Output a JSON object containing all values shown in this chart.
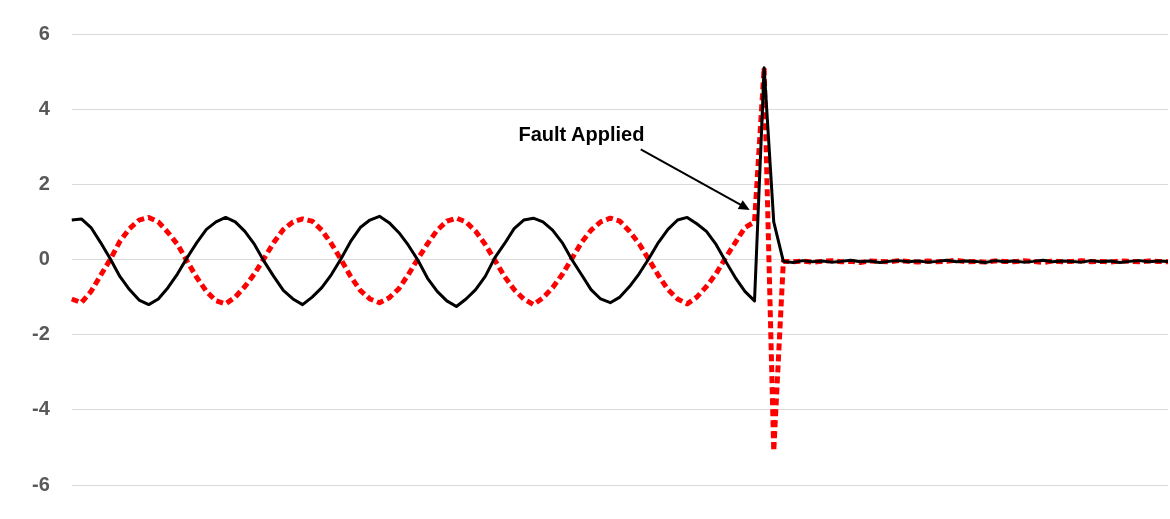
{
  "chart_data": {
    "type": "line",
    "categories": [
      null,
      null,
      null,
      null,
      null,
      null,
      null,
      null,
      null,
      null,
      null,
      null,
      null,
      null,
      null,
      null,
      null,
      null,
      null,
      null,
      null,
      null,
      null,
      null,
      null,
      null,
      null,
      null,
      null,
      null,
      null,
      null,
      null,
      null,
      null,
      null,
      null,
      null,
      null,
      null,
      null,
      null,
      null,
      null,
      null,
      null,
      null,
      null,
      null,
      null,
      null,
      null,
      null,
      null,
      null,
      null,
      null,
      null,
      null,
      null,
      null,
      null,
      null,
      null,
      null,
      null,
      null,
      null,
      null,
      null,
      null,
      null,
      null,
      null,
      null,
      null,
      null,
      null,
      null,
      null,
      null,
      null,
      null,
      null,
      null,
      null,
      null,
      null,
      null,
      null,
      null,
      null,
      null,
      null,
      null,
      null,
      null,
      null,
      null,
      null,
      null,
      null,
      null,
      null,
      null,
      null,
      null,
      null,
      null,
      null,
      null,
      null,
      null,
      null,
      null
    ],
    "series": [
      {
        "color": "#ff0000",
        "line_style": "dashed",
        "values": [
          -1.05,
          -1.15,
          -0.85,
          -0.42,
          0.0,
          0.48,
          0.82,
          1.05,
          1.12,
          1.0,
          0.72,
          0.4,
          -0.05,
          -0.48,
          -0.85,
          -1.1,
          -1.18,
          -1.0,
          -0.72,
          -0.38,
          0.03,
          0.45,
          0.8,
          1.0,
          1.08,
          1.02,
          0.78,
          0.42,
          0.0,
          -0.45,
          -0.82,
          -1.05,
          -1.15,
          -1.02,
          -0.78,
          -0.4,
          0.02,
          0.42,
          0.78,
          1.02,
          1.1,
          1.0,
          0.75,
          0.4,
          -0.02,
          -0.45,
          -0.8,
          -1.05,
          -1.2,
          -1.02,
          -0.75,
          -0.4,
          0.02,
          0.45,
          0.78,
          1.0,
          1.1,
          1.02,
          0.75,
          0.42,
          0.0,
          -0.42,
          -0.8,
          -1.05,
          -1.18,
          -1.0,
          -0.72,
          -0.38,
          0.05,
          0.45,
          0.85,
          1.0,
          5.1,
          -5.1,
          -0.05,
          -0.06,
          -0.04,
          -0.07,
          -0.05,
          -0.03,
          -0.06,
          -0.05,
          -0.08,
          -0.04,
          -0.05,
          -0.06,
          -0.03,
          -0.05,
          -0.07,
          -0.04,
          -0.06,
          -0.05,
          -0.02,
          -0.06,
          -0.05,
          -0.07,
          -0.04,
          -0.05,
          -0.06,
          -0.03,
          -0.05,
          -0.08,
          -0.04,
          -0.06,
          -0.05,
          -0.03,
          -0.06,
          -0.05,
          -0.07,
          -0.04,
          -0.05,
          -0.06,
          -0.04,
          -0.05,
          -0.06
        ]
      },
      {
        "color": "#000000",
        "line_style": "solid",
        "values": [
          1.05,
          1.08,
          0.85,
          0.45,
          0.02,
          -0.45,
          -0.8,
          -1.08,
          -1.2,
          -1.05,
          -0.75,
          -0.38,
          0.05,
          0.45,
          0.8,
          1.0,
          1.12,
          1.0,
          0.75,
          0.4,
          -0.05,
          -0.45,
          -0.82,
          -1.05,
          -1.2,
          -1.0,
          -0.75,
          -0.4,
          0.02,
          0.48,
          0.85,
          1.05,
          1.15,
          0.98,
          0.72,
          0.38,
          -0.02,
          -0.5,
          -0.85,
          -1.1,
          -1.25,
          -1.05,
          -0.8,
          -0.45,
          0.05,
          0.42,
          0.82,
          1.05,
          1.1,
          1.0,
          0.78,
          0.45,
          0.0,
          -0.4,
          -0.8,
          -1.05,
          -1.15,
          -1.0,
          -0.72,
          -0.38,
          0.02,
          0.45,
          0.8,
          1.05,
          1.12,
          0.95,
          0.75,
          0.4,
          -0.05,
          -0.48,
          -0.85,
          -1.1,
          5.1,
          1.0,
          -0.05,
          -0.08,
          -0.03,
          -0.06,
          -0.04,
          -0.07,
          -0.05,
          -0.02,
          -0.06,
          -0.04,
          -0.08,
          -0.05,
          -0.03,
          -0.06,
          -0.04,
          -0.07,
          -0.05,
          -0.02,
          -0.06,
          -0.04,
          -0.05,
          -0.08,
          -0.03,
          -0.06,
          -0.04,
          -0.07,
          -0.05,
          -0.02,
          -0.06,
          -0.04,
          -0.05,
          -0.07,
          -0.03,
          -0.06,
          -0.04,
          -0.08,
          -0.05,
          -0.03,
          -0.06,
          -0.04,
          -0.05
        ]
      }
    ],
    "ylim": [
      -6,
      6
    ],
    "yticks": [
      -6,
      -4,
      -2,
      0,
      2,
      4,
      6
    ],
    "grid": "y",
    "legend": false,
    "marker": "none",
    "tick_labels": "y",
    "annotations": [
      "Fault Applied"
    ]
  }
}
